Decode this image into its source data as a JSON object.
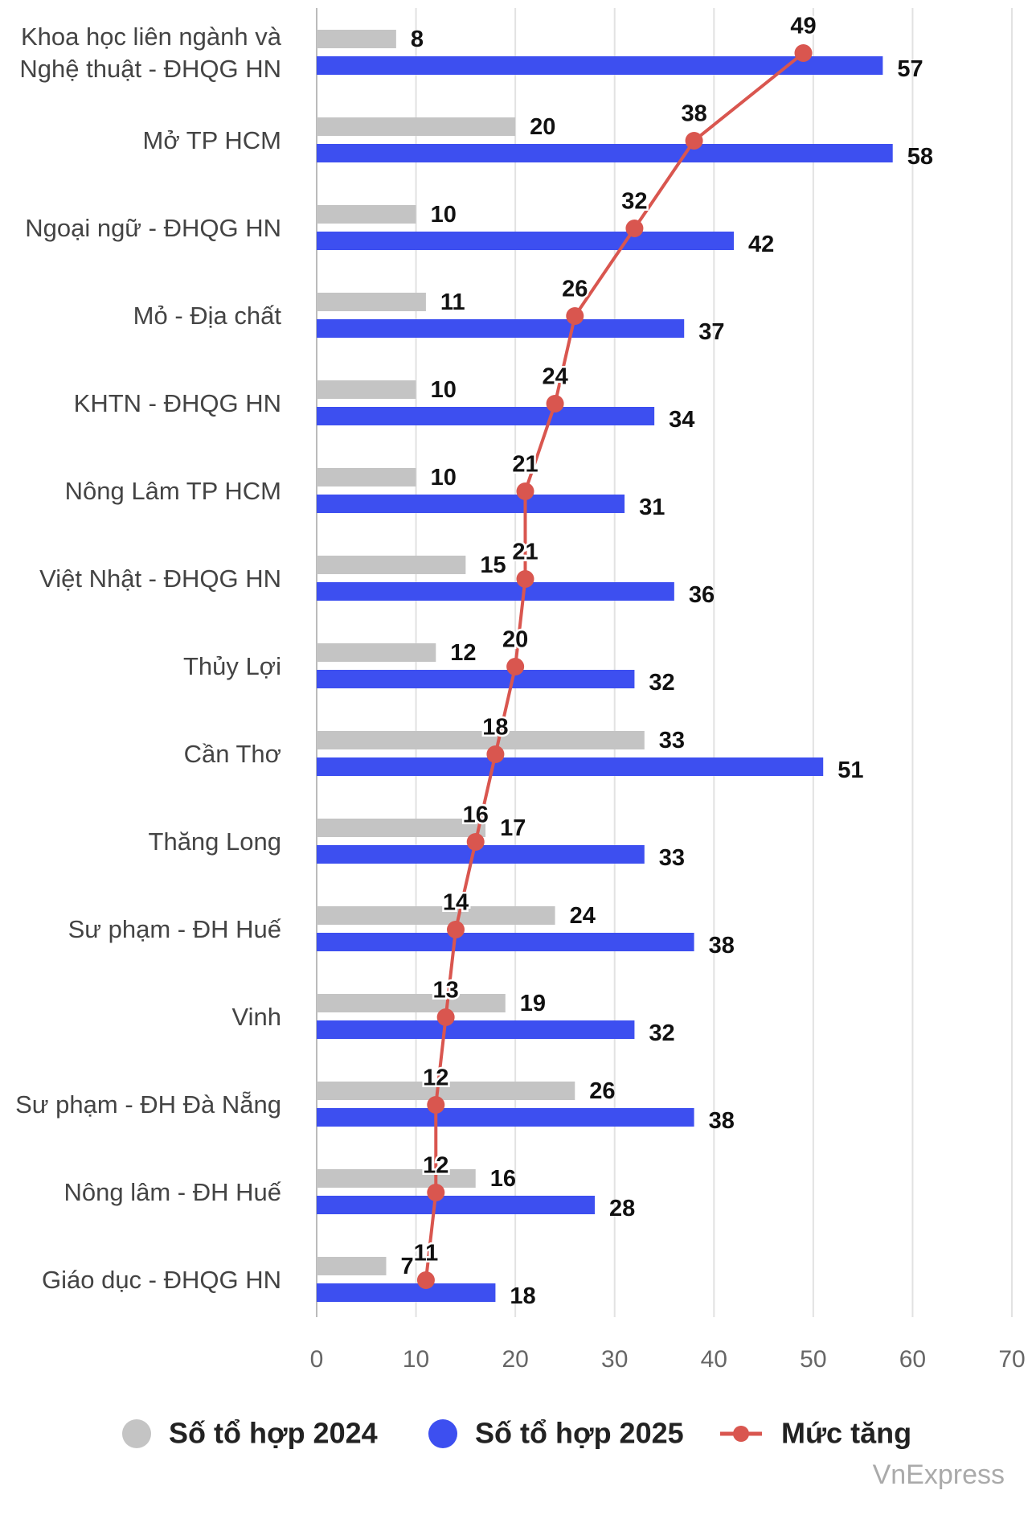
{
  "chart_data": {
    "type": "bar",
    "orientation": "horizontal",
    "categories": [
      "Khoa học liên ngành và\nNghệ thuật - ĐHQG HN",
      "Mở TP HCM",
      "Ngoại ngữ - ĐHQG HN",
      "Mỏ - Địa chất",
      "KHTN - ĐHQG HN",
      "Nông Lâm TP HCM",
      "Việt Nhật - ĐHQG HN",
      "Thủy Lợi",
      "Cần Thơ",
      "Thăng Long",
      "Sư phạm - ĐH Huế",
      "Vinh",
      "Sư phạm - ĐH Đà Nẵng",
      "Nông lâm - ĐH Huế",
      "Giáo dục - ĐHQG HN"
    ],
    "series": [
      {
        "name": "Số tổ hợp 2024",
        "color": "#c4c4c4",
        "values": [
          8,
          20,
          10,
          11,
          10,
          10,
          15,
          12,
          33,
          17,
          24,
          19,
          26,
          16,
          7
        ]
      },
      {
        "name": "Số tổ hợp 2025",
        "color": "#3d4ff0",
        "values": [
          57,
          58,
          42,
          37,
          34,
          31,
          36,
          32,
          51,
          33,
          38,
          32,
          38,
          28,
          18
        ]
      },
      {
        "name": "Mức tăng",
        "color": "#d9564f",
        "type": "line",
        "values": [
          49,
          38,
          32,
          26,
          24,
          21,
          21,
          20,
          18,
          16,
          14,
          13,
          12,
          12,
          11
        ]
      }
    ],
    "xlim": [
      0,
      70
    ],
    "xticks": [
      0,
      10,
      20,
      30,
      40,
      50,
      60,
      70
    ],
    "grid": true,
    "legend": "bottom",
    "source": "VnExpress"
  }
}
